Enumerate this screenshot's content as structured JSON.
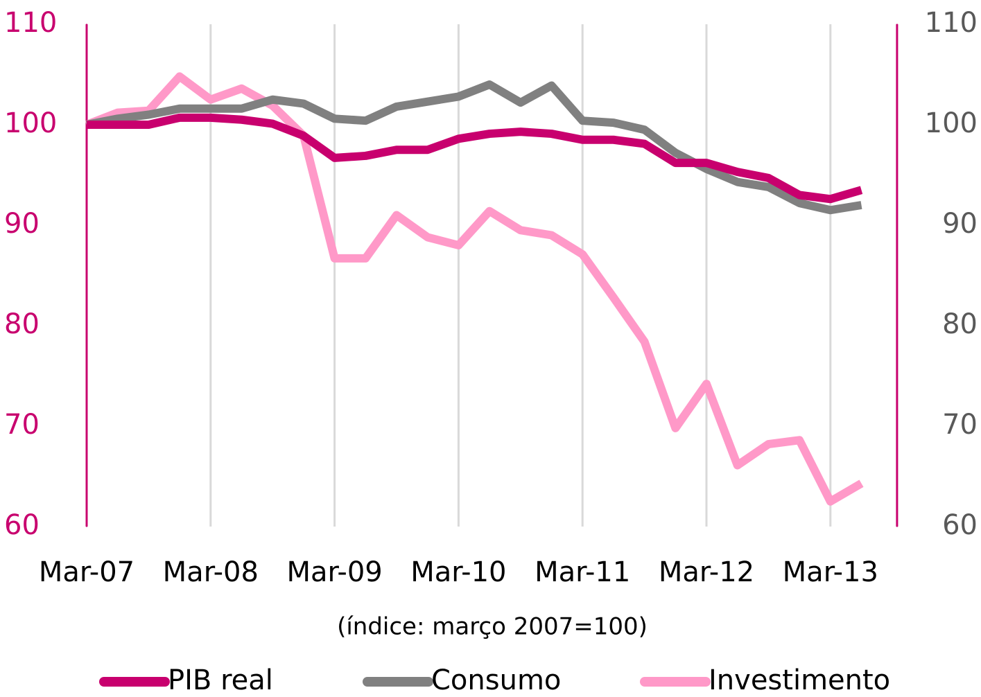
{
  "chart_data": {
    "type": "line",
    "x_label": "(índice: março 2007=100)",
    "categories": [
      "Mar-07",
      null,
      null,
      null,
      "Mar-08",
      null,
      null,
      null,
      "Mar-09",
      null,
      null,
      null,
      "Mar-10",
      null,
      null,
      null,
      "Mar-11",
      null,
      null,
      null,
      "Mar-12",
      null,
      null,
      null,
      "Mar-13",
      null
    ],
    "series": [
      {
        "name": "PIB real",
        "color": "#c8006e",
        "values": [
          100,
          100,
          100,
          100.7,
          100.7,
          100.5,
          100.1,
          98.9,
          96.7,
          96.9,
          97.5,
          97.5,
          98.6,
          99.1,
          99.3,
          99.1,
          98.5,
          98.5,
          98.1,
          96.2,
          96.2,
          95.3,
          94.7,
          93.0,
          92.6,
          93.5
        ]
      },
      {
        "name": "Consumo",
        "color": "#808080",
        "values": [
          100,
          100.6,
          101,
          101.6,
          101.6,
          101.6,
          102.5,
          102.1,
          100.6,
          100.4,
          101.8,
          102.3,
          102.8,
          104.0,
          102.2,
          103.9,
          100.4,
          100.2,
          99.5,
          97.2,
          95.6,
          94.3,
          93.8,
          92.2,
          91.5,
          92.0
        ]
      },
      {
        "name": "Investimento",
        "color": "#ff99c8",
        "values": [
          100,
          101.2,
          101.4,
          104.8,
          102.5,
          103.6,
          101.9,
          98.9,
          86.7,
          86.7,
          91.0,
          88.8,
          88.0,
          91.4,
          89.5,
          89.0,
          87.1,
          82.8,
          78.4,
          69.8,
          74.2,
          66.1,
          68.2,
          68.6,
          62.5,
          64.3
        ]
      }
    ],
    "ylim": [
      60,
      110
    ],
    "yticks": [
      60,
      70,
      80,
      90,
      100,
      110
    ],
    "y2lim": [
      60,
      110
    ],
    "y2ticks": [
      60,
      70,
      80,
      90,
      100,
      110
    ],
    "axis_color": "#c8006e",
    "y2_label_color": "#595959",
    "grid": "x"
  }
}
